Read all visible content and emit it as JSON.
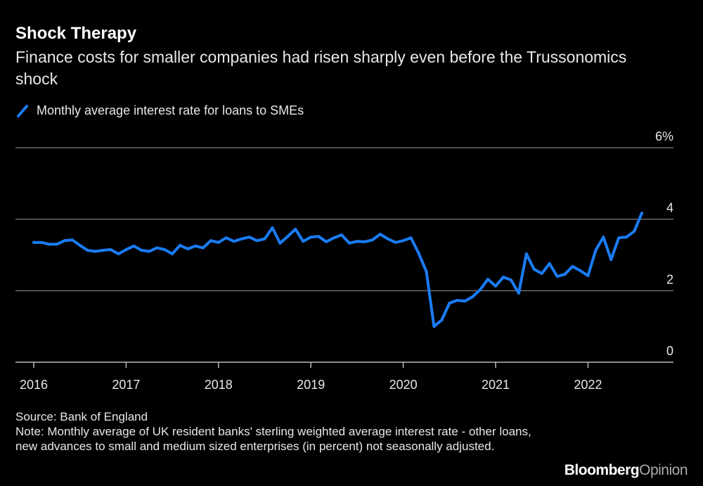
{
  "title": "Shock Therapy",
  "subtitle": "Finance costs for smaller companies had risen sharply even before the Trussonomics shock",
  "legend_label": "Monthly average interest rate for loans to SMEs",
  "source": "Source: Bank of England",
  "note": "Note: Monthly average of UK resident banks' sterling weighted average interest rate - other loans, new advances to small and medium sized enterprises (in percent) not seasonally adjusted.",
  "logo": {
    "brand": "Bloomberg",
    "suffix": "Opinion"
  },
  "colors": {
    "background": "#000000",
    "series": "#1a7cf5",
    "grid": "#6b6b6b"
  },
  "chart_data": {
    "type": "line",
    "title": "Shock Therapy",
    "x_start": "2016-01",
    "x_frequency": "monthly",
    "x_tick_labels": [
      "2016",
      "2017",
      "2018",
      "2019",
      "2020",
      "2021",
      "2022"
    ],
    "y_tick_labels": [
      "0",
      "2",
      "4",
      "6%"
    ],
    "y_ticks": [
      0,
      2,
      4,
      6
    ],
    "ylim": [
      0,
      6
    ],
    "grid": true,
    "legend": "top-left",
    "series": [
      {
        "name": "Monthly average interest rate for loans to SMEs",
        "values": [
          3.35,
          3.35,
          3.3,
          3.3,
          3.4,
          3.42,
          3.27,
          3.13,
          3.1,
          3.13,
          3.15,
          3.03,
          3.15,
          3.25,
          3.13,
          3.1,
          3.2,
          3.15,
          3.03,
          3.27,
          3.17,
          3.25,
          3.2,
          3.4,
          3.35,
          3.48,
          3.38,
          3.45,
          3.5,
          3.4,
          3.45,
          3.76,
          3.33,
          3.52,
          3.72,
          3.38,
          3.5,
          3.52,
          3.37,
          3.48,
          3.56,
          3.33,
          3.38,
          3.37,
          3.42,
          3.58,
          3.45,
          3.35,
          3.4,
          3.48,
          3.05,
          2.54,
          1.0,
          1.18,
          1.65,
          1.73,
          1.71,
          1.83,
          2.03,
          2.32,
          2.13,
          2.38,
          2.3,
          1.93,
          3.03,
          2.6,
          2.48,
          2.76,
          2.4,
          2.46,
          2.68,
          2.56,
          2.42,
          3.13,
          3.5,
          2.87,
          3.48,
          3.5,
          3.66,
          4.17
        ]
      }
    ]
  }
}
